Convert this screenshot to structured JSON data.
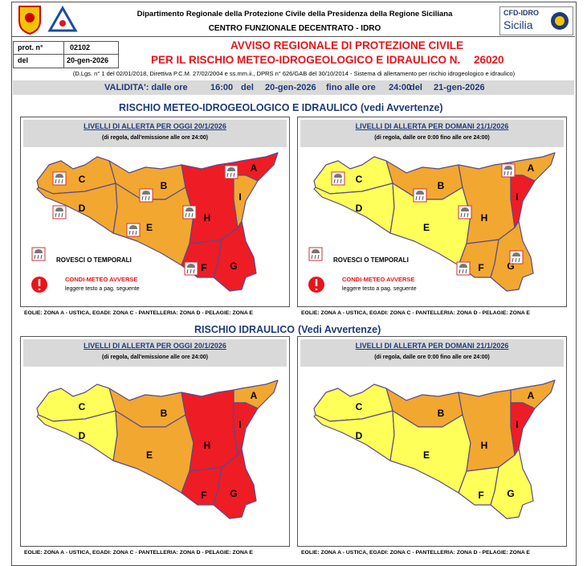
{
  "header": {
    "department": "Dipartimento Regionale della Protezione Civile della Presidenza della Regione Siciliana",
    "centre": "CENTRO FUNZIONALE DECENTRATO - IDRO",
    "logo_top": "CFD-IDRO",
    "logo_bottom": "Sicilia"
  },
  "protocol": {
    "number_label": "prot. n°",
    "number": "02102",
    "date_label": "del",
    "date": "20-gen-2026"
  },
  "title": {
    "line1": "AVVISO REGIONALE DI PROTEZIONE CIVILE",
    "line2": "PER IL RISCHIO METEO-IDROGEOLOGICO E IDRAULICO N.",
    "number": "26020",
    "legal": "(D.Lgs. n° 1 del 02/01/2018, Direttiva P.C.M. 27/02/2004 e ss.mm.ii., DPRS n° 626/GAB del 30/10/2014 - Sistema di allertamento per rischio idrogeologico e idraulico)"
  },
  "validity": {
    "label": "VALIDITA': dalle ore",
    "start_time": "16:00",
    "start_del": "del",
    "start_date": "20-gen-2026",
    "until": "fino alle ore",
    "end_time": "24:00",
    "end_del": "del",
    "end_date": "21-gen-2026"
  },
  "zones": [
    "A",
    "B",
    "C",
    "D",
    "E",
    "F",
    "G",
    "H",
    "I"
  ],
  "sections": [
    {
      "title": "RISCHIO METEO-IDROGEOLOGICO E IDRAULICO",
      "note": "(vedi Avvertenze)",
      "legend": {
        "storms": "ROVESCI O TEMPORALI",
        "adverse": "CONDI-METEO AVVERSE",
        "adverse_note": "leggere testo a pag. seguente"
      },
      "footer": "EOLIE: ZONA A - USTICA, EGADI: ZONA C - PANTELLERIA: ZONA D - PELAGIE: ZONA E",
      "panels": [
        {
          "title": "LIVELLI DI ALLERTA PER OGGI 20/1/2026",
          "subtitle": "(di regola, dall'emissione alle ore 24:00)",
          "colors": [
            "#ee1c25",
            "#f2a731",
            "#f2a731",
            "#f2a731",
            "#f2a731",
            "#ee1c25",
            "#ee1c25",
            "#ee1c25",
            "#f2a731"
          ]
        },
        {
          "title": "LIVELLI DI ALLERTA PER DOMANI 21/1/2026",
          "subtitle": "(di regola, dalle ore 0:00 fino alle ore 24:00)",
          "colors": [
            "#f2a731",
            "#f2a731",
            "#ffff5a",
            "#ffff5a",
            "#ffff5a",
            "#f2a731",
            "#f2a731",
            "#f2a731",
            "#ee1c25"
          ]
        }
      ]
    },
    {
      "title": "RISCHIO IDRAULICO",
      "note": "(Vedi Avvertenze)",
      "footer": "EOLIE: ZONA A - USTICA, EGADI: ZONA C - PANTELLERIA: ZONA D - PELAGIE: ZONA E",
      "panels": [
        {
          "title": "LIVELLI DI ALLERTA PER OGGI 20/1/2026",
          "subtitle": "(di regola, dall'emissione alle ore 24:00)",
          "colors": [
            "#f2a731",
            "#f2a731",
            "#ffff5a",
            "#ffff5a",
            "#f2a731",
            "#ee1c25",
            "#ee1c25",
            "#ee1c25",
            "#ee1c25"
          ]
        },
        {
          "title": "LIVELLI DI ALLERTA PER DOMANI 21/1/2026",
          "subtitle": "(di regola, dalle ore 0:00 fino alle ore 24:00)",
          "colors": [
            "#f2a731",
            "#f2a731",
            "#ffff5a",
            "#ffff5a",
            "#ffff5a",
            "#ffff5a",
            "#ffff5a",
            "#f2a731",
            "#ee1c25"
          ]
        }
      ]
    }
  ]
}
